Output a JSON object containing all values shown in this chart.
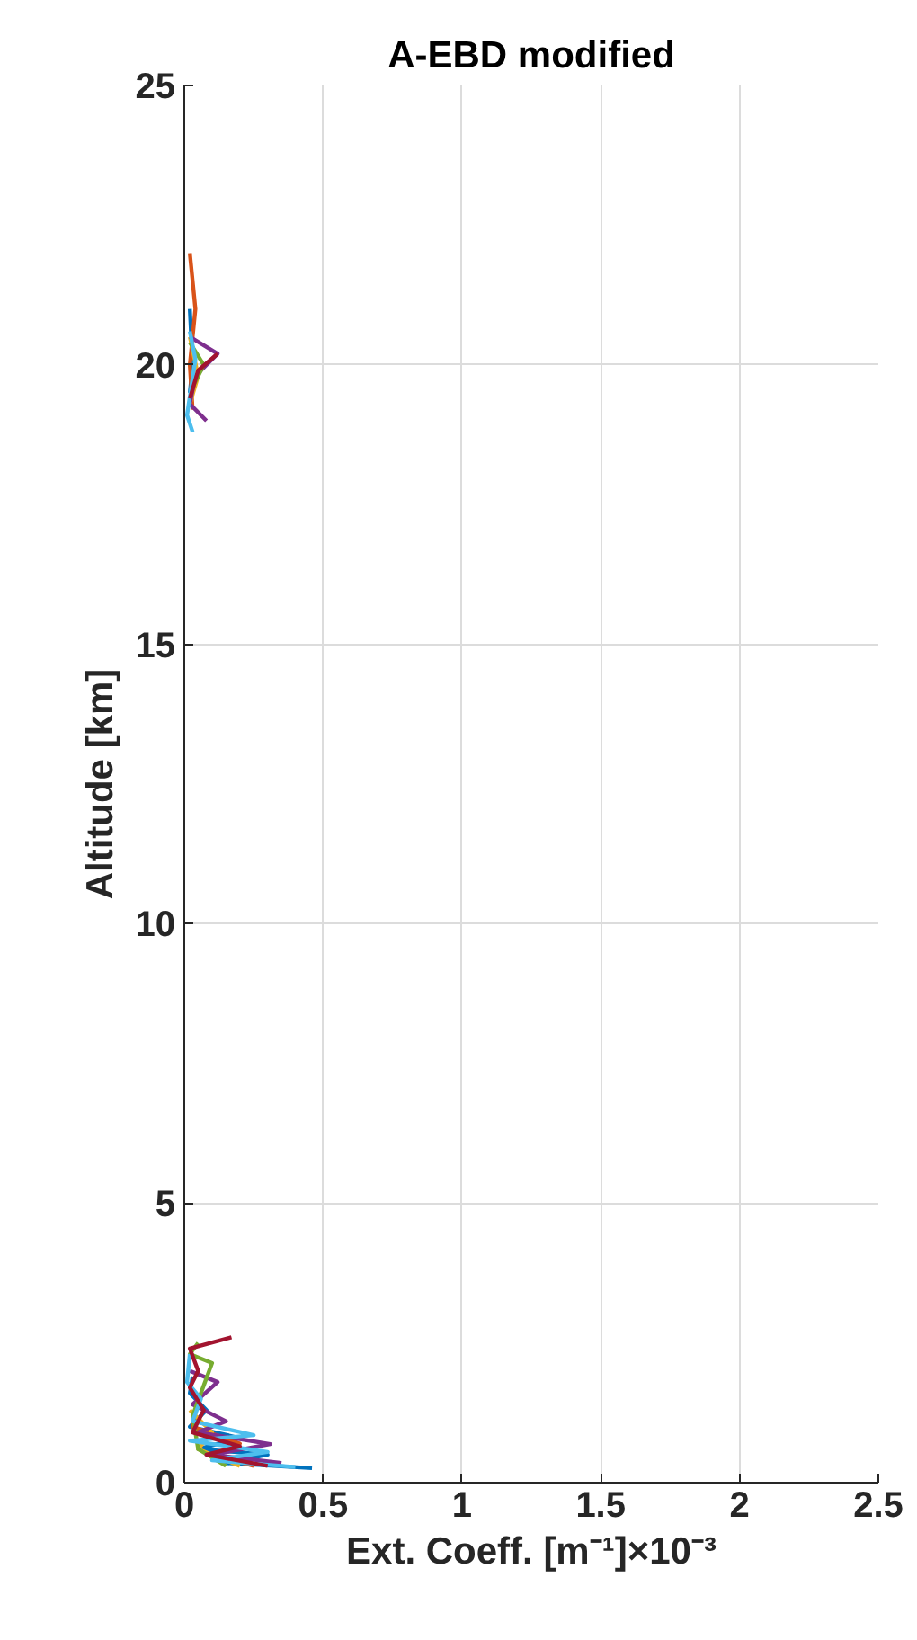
{
  "chart_data": {
    "type": "line",
    "title": "A-EBD modified",
    "xlabel": "Ext. Coeff. [m⁻¹]×10⁻³",
    "ylabel": "Altitude [km]",
    "xlim": [
      0,
      2.5
    ],
    "xticks": [
      0,
      0.5,
      1,
      1.5,
      2,
      2.5
    ],
    "ylim": [
      0,
      25
    ],
    "yticks": [
      0,
      5,
      10,
      15,
      20,
      25
    ],
    "grid": true,
    "marker": "none",
    "line_style": "solid",
    "series": [
      {
        "color": "#0072bd",
        "x": [
          0.46,
          0.15,
          0.3,
          0.05,
          0.2,
          0.02,
          0.08,
          0.02,
          0.03,
          null,
          0.02,
          0.03,
          0.02
        ],
        "values": [
          0.26,
          0.35,
          0.5,
          0.6,
          0.8,
          1.0,
          1.3,
          1.6,
          1.9,
          null,
          19.5,
          20.0,
          21.0
        ]
      },
      {
        "color": "#d95319",
        "x": [
          0.25,
          0.1,
          0.2,
          0.03,
          0.05,
          null,
          0.03,
          0.02,
          0.04,
          0.02
        ],
        "values": [
          0.3,
          0.5,
          0.7,
          1.0,
          1.5,
          null,
          19.2,
          20.0,
          21.0,
          22.0
        ]
      },
      {
        "color": "#edb120",
        "x": [
          0.2,
          0.05,
          0.1,
          0.02,
          null,
          0.02,
          0.05,
          0.02
        ],
        "values": [
          0.3,
          0.6,
          0.9,
          1.3,
          null,
          19.3,
          19.8,
          20.5
        ]
      },
      {
        "color": "#7e2f8e",
        "x": [
          0.35,
          0.1,
          0.31,
          0.05,
          0.15,
          0.03,
          0.12,
          0.02,
          null,
          0.08,
          0.02,
          0.04,
          0.12,
          0.02
        ],
        "values": [
          0.35,
          0.5,
          0.69,
          0.9,
          1.1,
          1.4,
          1.8,
          2.0,
          null,
          19.0,
          19.3,
          19.8,
          20.2,
          20.5
        ]
      },
      {
        "color": "#77ac30",
        "x": [
          0.15,
          0.05,
          0.03,
          0.1,
          0.02,
          0.05,
          null,
          0.03,
          0.07,
          0.02
        ],
        "values": [
          0.3,
          0.6,
          1.2,
          2.14,
          2.3,
          2.5,
          null,
          19.6,
          20.0,
          20.4
        ]
      },
      {
        "color": "#4dbeee",
        "x": [
          0.4,
          0.1,
          0.3,
          0.02,
          0.25,
          0.03,
          0.06,
          0.01,
          0.02,
          null,
          0.03,
          0.01,
          0.04,
          0.02
        ],
        "values": [
          0.28,
          0.4,
          0.55,
          0.75,
          0.85,
          1.1,
          1.5,
          1.8,
          2.3,
          null,
          18.8,
          19.1,
          20.1,
          20.6
        ]
      },
      {
        "color": "#a2142f",
        "x": [
          0.3,
          0.08,
          0.2,
          0.03,
          0.07,
          0.02,
          0.05,
          0.02,
          0.17,
          null,
          0.02,
          0.05,
          0.12
        ],
        "values": [
          0.3,
          0.5,
          0.65,
          0.9,
          1.3,
          1.7,
          2.0,
          2.4,
          2.6,
          null,
          19.4,
          19.9,
          20.2
        ]
      }
    ]
  }
}
